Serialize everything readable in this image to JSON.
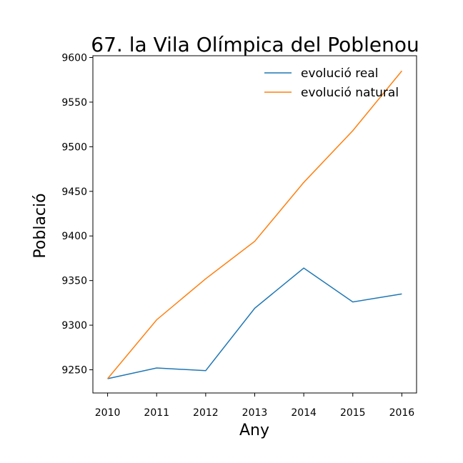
{
  "chart_data": {
    "type": "line",
    "title": "67. la Vila Olímpica del Poblenou",
    "xlabel": "Any",
    "ylabel": "Població",
    "x": [
      2010,
      2011,
      2012,
      2013,
      2014,
      2015,
      2016
    ],
    "xlim": [
      2009.7,
      2016.3
    ],
    "ylim": [
      9224,
      9602
    ],
    "yticks": [
      9250,
      9300,
      9350,
      9400,
      9450,
      9500,
      9550,
      9600
    ],
    "grid": false,
    "legend_position": "top-right",
    "series": [
      {
        "name": "evolució real",
        "color": "#1f77b4",
        "values": [
          9240,
          9252,
          9249,
          9319,
          9364,
          9326,
          9335
        ]
      },
      {
        "name": "evolució natural",
        "color": "#ff7f0e",
        "values": [
          9240,
          9306,
          9352,
          9394,
          9460,
          9518,
          9585
        ]
      }
    ]
  }
}
